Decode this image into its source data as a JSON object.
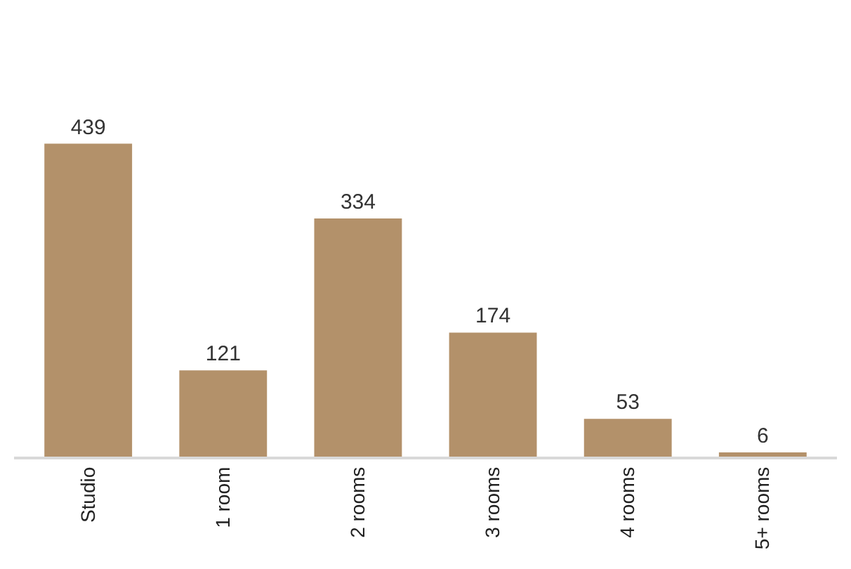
{
  "chart_data": {
    "type": "bar",
    "categories": [
      "Studio",
      "1 room",
      "2 rooms",
      "3 rooms",
      "4 rooms",
      "5+ rooms"
    ],
    "values": [
      439,
      121,
      334,
      174,
      53,
      6
    ],
    "color": "#b3916a",
    "data_labels": true,
    "tick_labels": "x"
  }
}
